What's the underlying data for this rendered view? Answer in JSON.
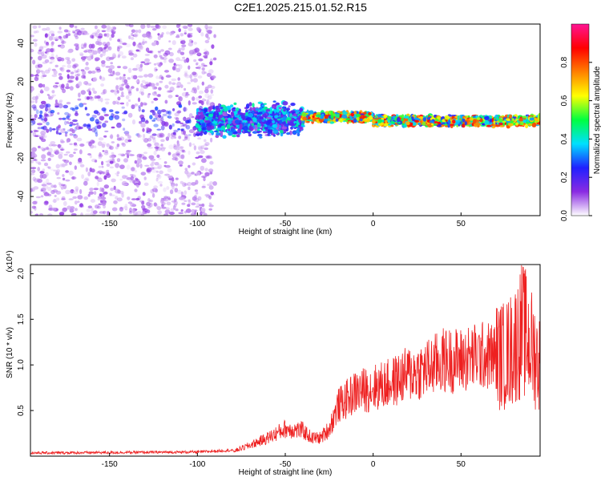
{
  "chart_data": [
    {
      "type": "heatmap",
      "title": "C2E1.2025.215.01.52.R15",
      "xlabel": "Height of straight line (km)",
      "ylabel": "Frequency (Hz)",
      "xlim": [
        -195,
        95
      ],
      "ylim": [
        -50,
        50
      ],
      "xticks": [
        "-150",
        "-100",
        "-50",
        "0",
        "50"
      ],
      "xtick_values": [
        -150,
        -100,
        -50,
        0,
        50
      ],
      "yticks": [
        "-40",
        "-20",
        "0",
        "20",
        "40"
      ],
      "ytick_values": [
        -40,
        -20,
        0,
        20,
        40
      ],
      "colorbar": {
        "label": "Normalized spectral amplitude",
        "ticks": [
          "0.0",
          "0.2",
          "0.4",
          "0.6",
          "0.8"
        ],
        "tick_values": [
          0.0,
          0.2,
          0.4,
          0.6,
          0.8
        ],
        "range": [
          0,
          1
        ],
        "colors": [
          "#ffffff",
          "#8a2be2",
          "#2020ff",
          "#00e0ff",
          "#00ff40",
          "#ffff00",
          "#ff8000",
          "#ff0000",
          "#ff1493"
        ]
      },
      "regions": [
        {
          "x_range": [
            -195,
            -90
          ],
          "freq_spread": 50,
          "amplitude": 0.15
        },
        {
          "x_range": [
            -100,
            -40
          ],
          "freq_spread": 8,
          "amplitude": 0.3
        },
        {
          "x_range": [
            -40,
            95
          ],
          "freq_spread": 3,
          "amplitude": 0.75
        }
      ]
    },
    {
      "type": "line",
      "title": "",
      "xlabel": "Height of straight line (km)",
      "ylabel": "SNR (10 * v/v)",
      "scale_label": "(x10⁴)",
      "xlim": [
        -195,
        95
      ],
      "ylim": [
        0,
        2.1
      ],
      "xticks": [
        "-150",
        "-100",
        "-50",
        "0",
        "50"
      ],
      "xtick_values": [
        -150,
        -100,
        -50,
        0,
        50
      ],
      "yticks": [
        "0.5",
        "1.0",
        "1.5",
        "2.0"
      ],
      "ytick_values": [
        0.5,
        1.0,
        1.5,
        2.0
      ],
      "color": "#ee2020",
      "envelope": {
        "x": [
          -195,
          -100,
          -80,
          -70,
          -60,
          -50,
          -40,
          -35,
          -30,
          -25,
          -20,
          -10,
          0,
          10,
          20,
          30,
          40,
          50,
          60,
          70,
          75,
          80,
          85,
          90,
          95
        ],
        "y": [
          0.02,
          0.03,
          0.05,
          0.12,
          0.2,
          0.3,
          0.28,
          0.2,
          0.2,
          0.3,
          0.55,
          0.7,
          0.75,
          0.8,
          0.9,
          0.95,
          1.05,
          1.05,
          1.1,
          1.1,
          1.1,
          1.2,
          1.4,
          1.2,
          1.0
        ]
      }
    }
  ]
}
